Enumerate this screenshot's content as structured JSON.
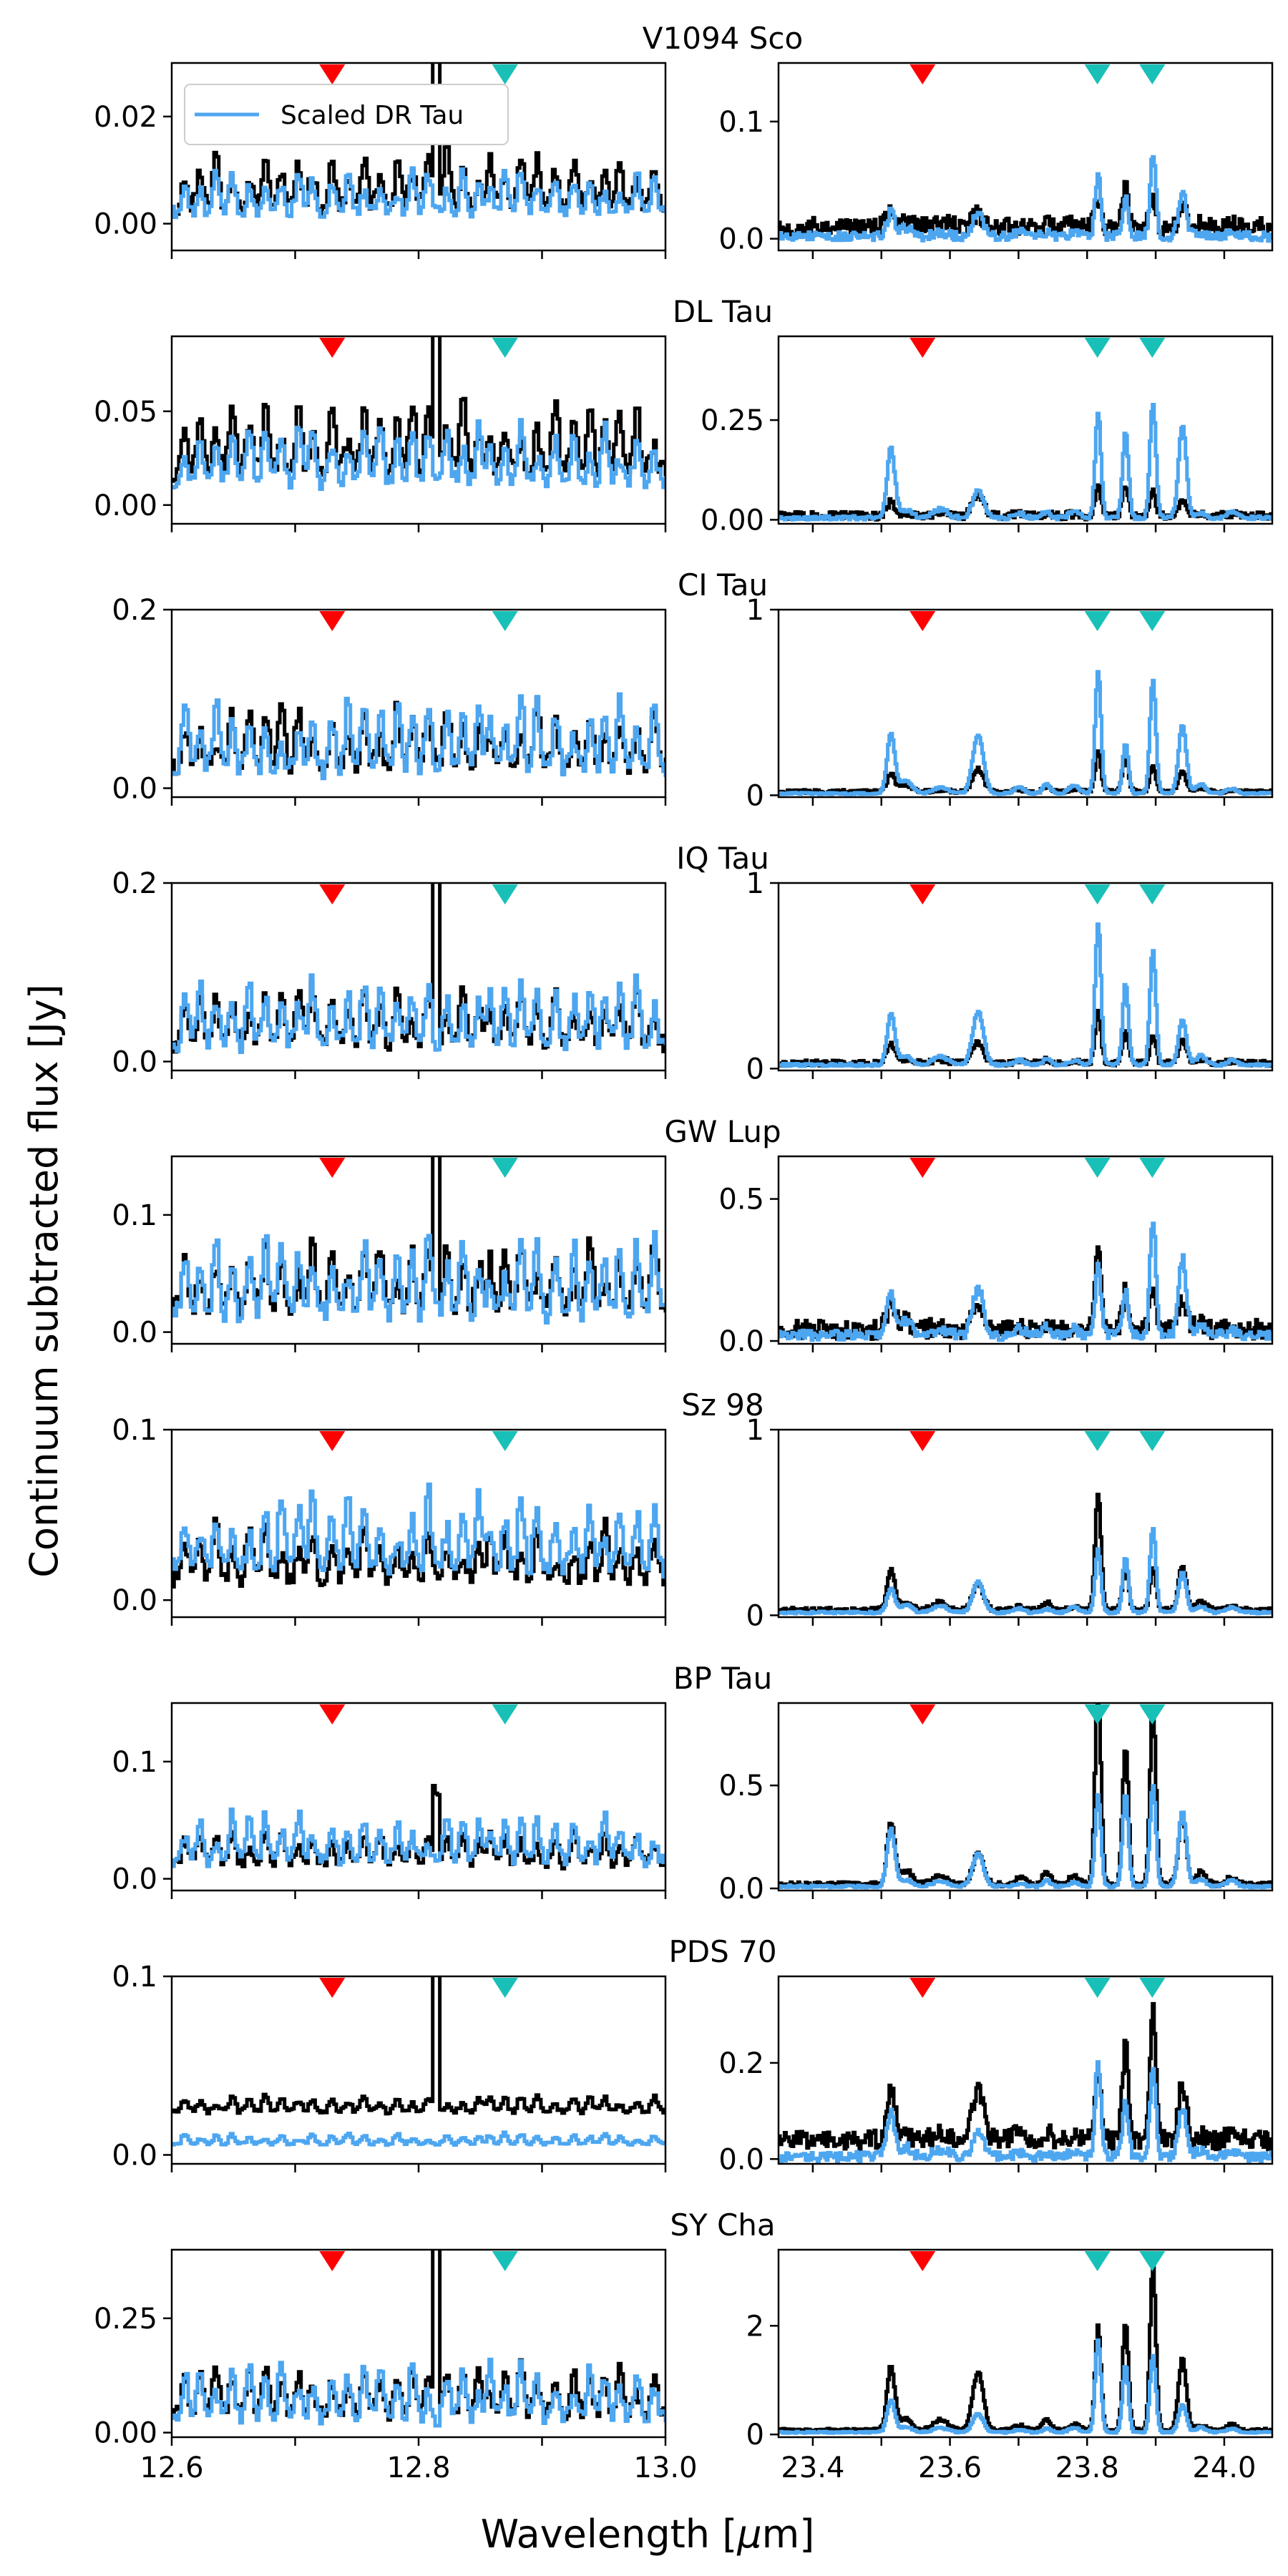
{
  "figure": {
    "ylabel": "Continuum subtracted flux [Jy]",
    "xlabel_prefix": "Wavelength [",
    "xlabel_mu": "μ",
    "xlabel_suffix": "m]",
    "legend": {
      "label": "Scaled DR Tau",
      "color": "#4da6f0"
    }
  },
  "chart_data": {
    "type": "line",
    "style": "step",
    "series_colors": {
      "observed": "#000000",
      "scaled_dr_tau": "#4da6f0"
    },
    "marker_colors": {
      "red": "#ff0000",
      "cyan": "#19c0b8"
    },
    "left_xlim": [
      12.6,
      13.0
    ],
    "right_xlim": [
      23.35,
      24.07
    ],
    "left_xticks": [
      "12.6",
      "12.8",
      "13.0"
    ],
    "right_xticks": [
      "23.4",
      "23.6",
      "23.8",
      "24.0"
    ],
    "left_xtick_values": [
      12.6,
      12.7,
      12.8,
      12.9,
      13.0
    ],
    "right_xtick_values": [
      23.4,
      23.5,
      23.6,
      23.7,
      23.8,
      23.9,
      24.0
    ],
    "left_markers": [
      {
        "x": 12.73,
        "color": "red"
      },
      {
        "x": 12.87,
        "color": "cyan"
      }
    ],
    "right_markers": [
      {
        "x": 23.56,
        "color": "red"
      },
      {
        "x": 23.815,
        "color": "cyan"
      },
      {
        "x": 23.895,
        "color": "cyan"
      }
    ],
    "left_peaks": [
      12.61,
      12.622,
      12.635,
      12.648,
      12.662,
      12.675,
      12.688,
      12.702,
      12.713,
      12.729,
      12.742,
      12.755,
      12.768,
      12.782,
      12.794,
      12.807,
      12.822,
      12.835,
      12.848,
      12.857,
      12.869,
      12.882,
      12.895,
      12.91,
      12.925,
      12.938,
      12.95,
      12.962,
      12.976,
      12.99
    ],
    "right_peaks": [
      {
        "x": 23.513,
        "w": 0.008,
        "a": 0.75
      },
      {
        "x": 23.535,
        "w": 0.012,
        "a": 0.15
      },
      {
        "x": 23.585,
        "w": 0.015,
        "a": 0.1
      },
      {
        "x": 23.64,
        "w": 0.011,
        "a": 0.62
      },
      {
        "x": 23.7,
        "w": 0.01,
        "a": 0.08
      },
      {
        "x": 23.74,
        "w": 0.008,
        "a": 0.1
      },
      {
        "x": 23.78,
        "w": 0.01,
        "a": 0.08
      },
      {
        "x": 23.815,
        "w": 0.006,
        "a": 1.6
      },
      {
        "x": 23.855,
        "w": 0.006,
        "a": 1.15
      },
      {
        "x": 23.895,
        "w": 0.006,
        "a": 1.45
      },
      {
        "x": 23.938,
        "w": 0.008,
        "a": 0.95
      },
      {
        "x": 23.965,
        "w": 0.01,
        "a": 0.1
      },
      {
        "x": 24.01,
        "w": 0.01,
        "a": 0.08
      }
    ],
    "panels": [
      {
        "name": "V1094 Sco",
        "left": {
          "ylim": [
            -0.005,
            0.03
          ],
          "yticks": [
            0,
            0.02
          ],
          "ytick_labels": [
            "0.00",
            "0.02"
          ],
          "obs_scale": 0.009,
          "obs_base": 0.003,
          "model_scale": 0.007,
          "model_base": 0.002,
          "spike": 0.04
        },
        "right": {
          "ylim": [
            -0.01,
            0.15
          ],
          "yticks": [
            0,
            0.1
          ],
          "ytick_labels": [
            "0.0",
            "0.1"
          ],
          "obs_scale": 0.03,
          "obs_base": 0.01,
          "model_scale": 0.05,
          "model_base": 0.002,
          "noise": 0.008
        }
      },
      {
        "name": "DL Tau",
        "left": {
          "ylim": [
            -0.01,
            0.09
          ],
          "yticks": [
            0,
            0.05
          ],
          "ytick_labels": [
            "0.00",
            "0.05"
          ],
          "obs_scale": 0.032,
          "obs_base": 0.018,
          "model_scale": 0.025,
          "model_base": 0.012,
          "spike": 0.12
        },
        "right": {
          "ylim": [
            -0.01,
            0.46
          ],
          "yticks": [
            0,
            0.25
          ],
          "ytick_labels": [
            "0.00",
            "0.25"
          ],
          "obs_scale": 0.07,
          "obs_base": 0.01,
          "model_scale": 0.2,
          "model_base": 0.005,
          "noise": 0.01
        }
      },
      {
        "name": "CI Tau",
        "left": {
          "ylim": [
            -0.01,
            0.2
          ],
          "yticks": [
            0,
            0.2
          ],
          "ytick_labels": [
            "0.0",
            "0.2"
          ],
          "obs_scale": 0.06,
          "obs_base": 0.025,
          "model_scale": 0.065,
          "model_base": 0.02,
          "spike": 0
        },
        "right": {
          "ylim": [
            -0.01,
            1.0
          ],
          "yticks": [
            0,
            1
          ],
          "ytick_labels": [
            "0",
            "1"
          ],
          "obs_scale": 0.18,
          "obs_base": 0.02,
          "model_scale": 0.42,
          "model_base": 0.01,
          "noise": 0.01
        }
      },
      {
        "name": "IQ Tau",
        "left": {
          "ylim": [
            -0.01,
            0.2
          ],
          "yticks": [
            0,
            0.2
          ],
          "ytick_labels": [
            "0.0",
            "0.2"
          ],
          "obs_scale": 0.055,
          "obs_base": 0.02,
          "model_scale": 0.06,
          "model_base": 0.018,
          "spike": 0.25
        },
        "right": {
          "ylim": [
            -0.01,
            1.0
          ],
          "yticks": [
            0,
            1
          ],
          "ytick_labels": [
            "0",
            "1"
          ],
          "obs_scale": 0.19,
          "obs_base": 0.03,
          "model_scale": 0.42,
          "model_base": 0.02,
          "noise": 0.015
        }
      },
      {
        "name": "GW Lup",
        "left": {
          "ylim": [
            -0.01,
            0.15
          ],
          "yticks": [
            0,
            0.1
          ],
          "ytick_labels": [
            "0.0",
            "0.1"
          ],
          "obs_scale": 0.05,
          "obs_base": 0.02,
          "model_scale": 0.055,
          "model_base": 0.015,
          "spike": 0.2
        },
        "right": {
          "ylim": [
            -0.01,
            0.65
          ],
          "yticks": [
            0,
            0.5
          ],
          "ytick_labels": [
            "0.0",
            "0.5"
          ],
          "obs_scale": 0.18,
          "obs_base": 0.04,
          "model_scale": 0.27,
          "model_base": 0.02,
          "noise": 0.035
        }
      },
      {
        "name": "Sz 98",
        "left": {
          "ylim": [
            -0.01,
            0.1
          ],
          "yticks": [
            0,
            0.1
          ],
          "ytick_labels": [
            "0.0",
            "0.1"
          ],
          "obs_scale": 0.028,
          "obs_base": 0.012,
          "model_scale": 0.038,
          "model_base": 0.018,
          "spike": 0
        },
        "right": {
          "ylim": [
            -0.01,
            1.0
          ],
          "yticks": [
            0,
            1
          ],
          "ytick_labels": [
            "0",
            "1"
          ],
          "obs_scale": 0.35,
          "obs_base": 0.03,
          "model_scale": 0.3,
          "model_base": 0.015,
          "noise": 0.012
        }
      },
      {
        "name": "BP Tau",
        "left": {
          "ylim": [
            -0.01,
            0.15
          ],
          "yticks": [
            0,
            0.1
          ],
          "ytick_labels": [
            "0.0",
            "0.1"
          ],
          "obs_scale": 0.025,
          "obs_base": 0.012,
          "model_scale": 0.035,
          "model_base": 0.015,
          "spike": 0.06
        },
        "right": {
          "ylim": [
            -0.01,
            0.9
          ],
          "yticks": [
            0,
            0.5
          ],
          "ytick_labels": [
            "0.0",
            "0.5"
          ],
          "obs_scale": 0.48,
          "obs_base": 0.02,
          "model_scale": 0.32,
          "model_base": 0.01,
          "noise": 0.012
        }
      },
      {
        "name": "PDS 70",
        "left": {
          "ylim": [
            -0.005,
            0.1
          ],
          "yticks": [
            0,
            0.1
          ],
          "ytick_labels": [
            "0.0",
            "0.1"
          ],
          "obs_scale": 0.008,
          "obs_base": 0.024,
          "model_scale": 0.005,
          "model_base": 0.006,
          "spike": 0.1
        },
        "right": {
          "ylim": [
            -0.01,
            0.38
          ],
          "yticks": [
            0,
            0.2
          ],
          "ytick_labels": [
            "0.0",
            "0.2"
          ],
          "obs_scale": 0.16,
          "obs_base": 0.04,
          "model_scale": 0.12,
          "model_base": 0.005,
          "noise": 0.02
        }
      },
      {
        "name": "SY Cha",
        "left": {
          "ylim": [
            -0.01,
            0.4
          ],
          "yticks": [
            0,
            0.25
          ],
          "ytick_labels": [
            "0.00",
            "0.25"
          ],
          "obs_scale": 0.09,
          "obs_base": 0.04,
          "model_scale": 0.1,
          "model_base": 0.03,
          "spike": 0.45
        },
        "right": {
          "ylim": [
            -0.05,
            3.4
          ],
          "yticks": [
            0,
            2
          ],
          "ytick_labels": [
            "0",
            "2"
          ],
          "obs_scale": 1.75,
          "obs_base": 0.08,
          "model_scale": 0.9,
          "model_base": 0.04,
          "noise": 0.03
        }
      }
    ]
  }
}
